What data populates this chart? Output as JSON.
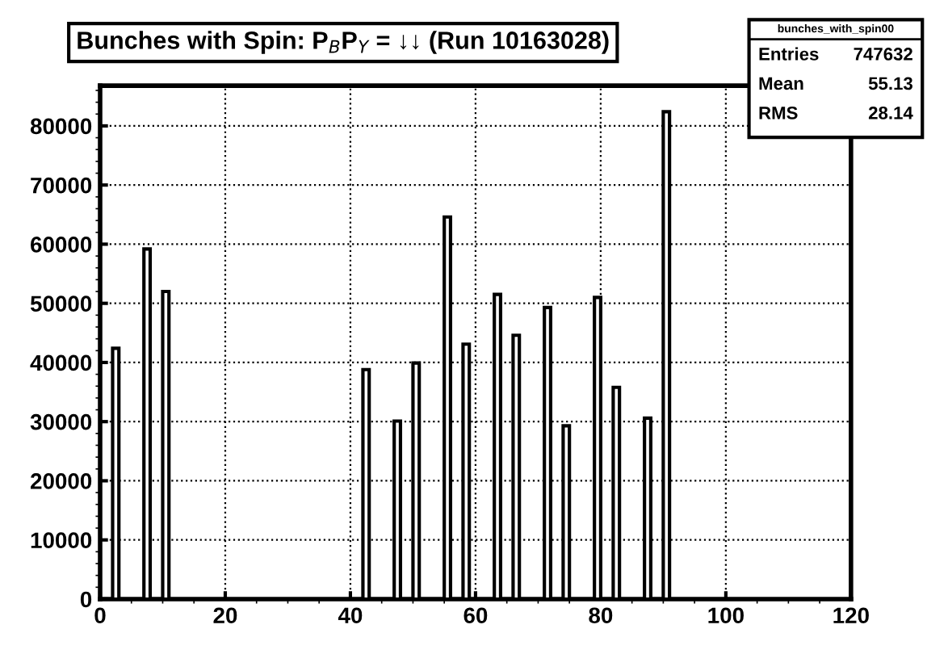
{
  "chart_data": {
    "type": "histogram",
    "title": "Bunches with Spin: P$_{B}$P$_{Y}$ = ↓↓ (Run 10163028)",
    "bins": [
      0,
      1,
      2,
      3,
      4,
      5,
      6,
      7,
      8,
      9,
      10,
      11,
      12,
      13,
      14,
      15,
      16,
      17,
      18,
      19,
      20,
      21,
      22,
      23,
      24,
      25,
      26,
      27,
      28,
      29,
      30,
      31,
      32,
      33,
      34,
      35,
      36,
      37,
      38,
      39,
      40,
      41,
      42,
      43,
      44,
      45,
      46,
      47,
      48,
      49,
      50,
      51,
      52,
      53,
      54,
      55,
      56,
      57,
      58,
      59,
      60,
      61,
      62,
      63,
      64,
      65,
      66,
      67,
      68,
      69,
      70,
      71,
      72,
      73,
      74,
      75,
      76,
      77,
      78,
      79,
      80,
      81,
      82,
      83,
      84,
      85,
      86,
      87,
      88,
      89,
      90,
      91,
      92,
      93,
      94,
      95,
      96,
      97,
      98,
      99,
      100,
      101,
      102,
      103,
      104,
      105,
      106,
      107,
      108,
      109,
      110,
      111,
      112,
      113,
      114,
      115,
      116,
      117,
      118,
      119,
      120
    ],
    "values": [
      0,
      0,
      42400,
      0,
      0,
      0,
      0,
      59200,
      0,
      0,
      52000,
      0,
      0,
      0,
      0,
      0,
      0,
      0,
      0,
      0,
      0,
      0,
      0,
      0,
      0,
      0,
      0,
      0,
      0,
      0,
      0,
      0,
      0,
      0,
      0,
      0,
      0,
      0,
      0,
      0,
      0,
      0,
      38800,
      0,
      0,
      0,
      0,
      30100,
      0,
      0,
      39900,
      0,
      0,
      0,
      0,
      64600,
      0,
      0,
      43100,
      0,
      0,
      0,
      0,
      51500,
      0,
      0,
      44600,
      0,
      0,
      0,
      0,
      49300,
      0,
      0,
      29300,
      0,
      0,
      0,
      0,
      51000,
      0,
      0,
      35800,
      0,
      0,
      0,
      0,
      30600,
      0,
      0,
      82400,
      0,
      0,
      0,
      0,
      0,
      0,
      0,
      0,
      0,
      0,
      0,
      0,
      0,
      0,
      0,
      0,
      0,
      0,
      0,
      0,
      0,
      0,
      0,
      0,
      0,
      0,
      0,
      0,
      0
    ],
    "color": "#000000",
    "xlim": [
      0,
      120
    ],
    "xticks": [
      0,
      20,
      40,
      60,
      80,
      100,
      120
    ],
    "ylim": [
      0,
      86800
    ],
    "yticks": [
      0,
      10000,
      20000,
      30000,
      40000,
      50000,
      60000,
      70000,
      80000
    ],
    "grid": true,
    "annotations": [
      "bunches_with_spin00",
      "Entries",
      "747632",
      "Mean",
      "55.13",
      "RMS",
      "28.14"
    ]
  }
}
